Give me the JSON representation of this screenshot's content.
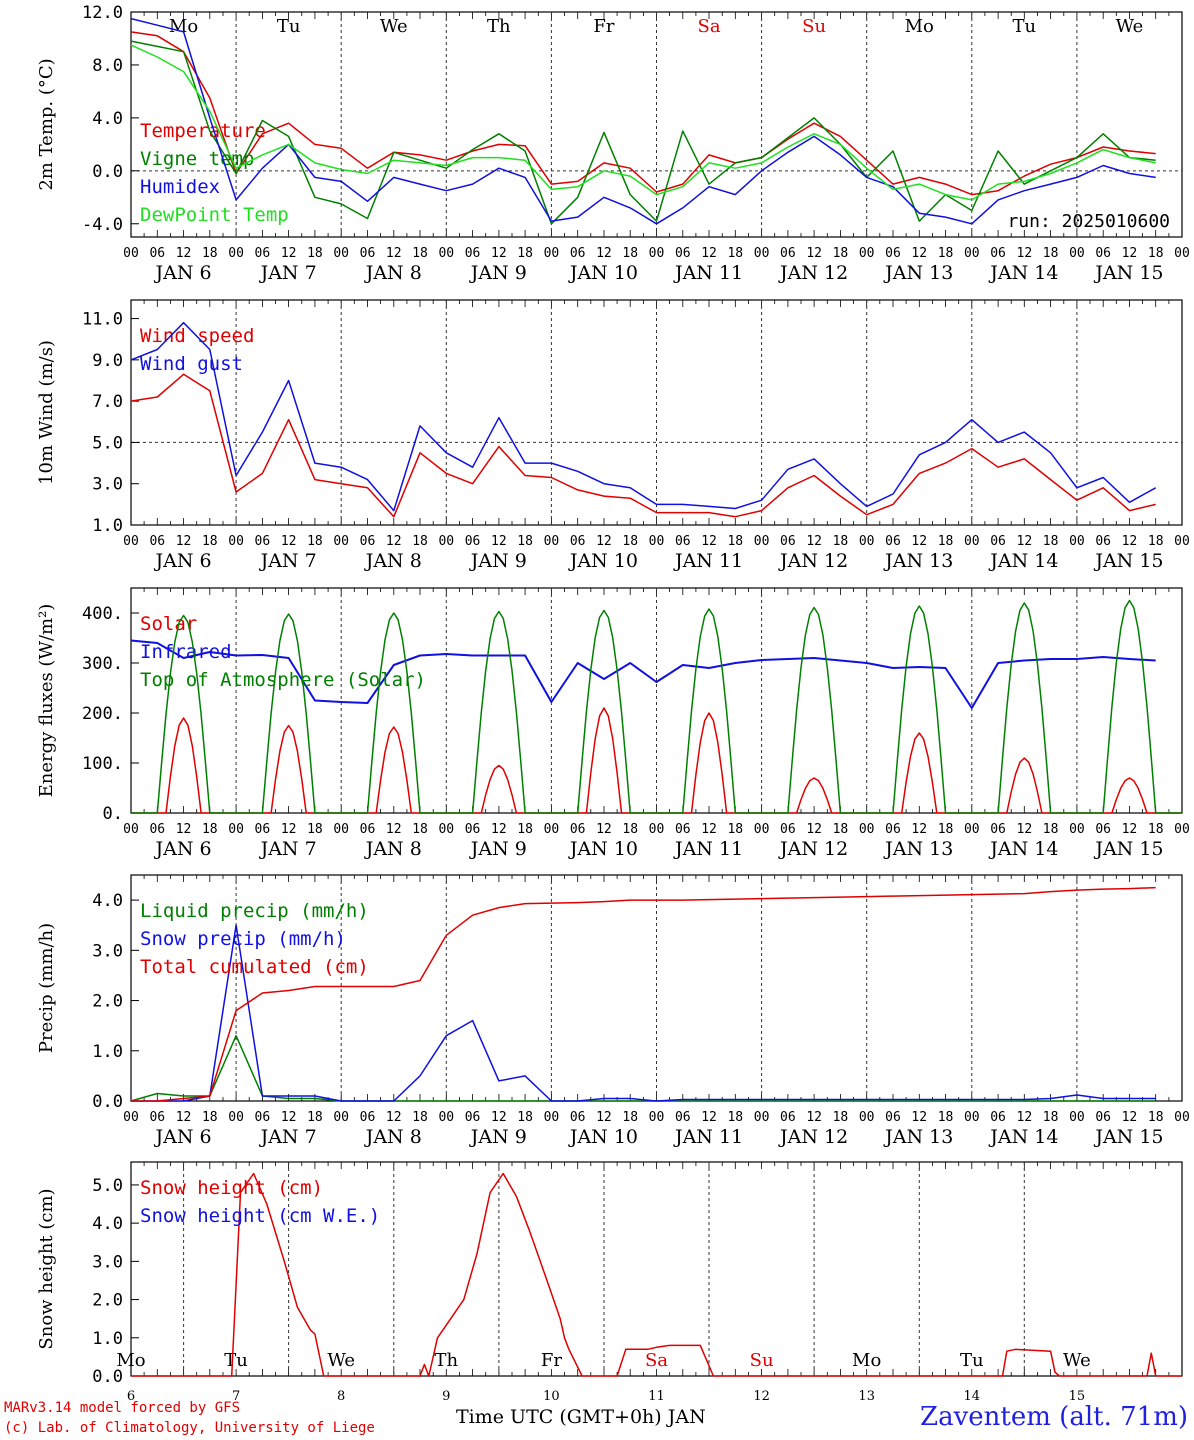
{
  "footer": {
    "model_line": "MARv3.14 model forced by GFS",
    "credit_line": "(c) Lab. of Climatology, University of Liege",
    "station": "Zaventem (alt. 71m)",
    "x_title": "Time UTC (GMT+0h) JAN"
  },
  "colors": {
    "red": "#e00000",
    "green": "#008000",
    "blue": "#1010e0",
    "lightgreen": "#20e020",
    "grid": "#555555"
  },
  "days": {
    "weekdays": [
      "Mo",
      "Tu",
      "We",
      "Th",
      "Fr",
      "Sa",
      "Su",
      "Mo",
      "Tu",
      "We"
    ],
    "weekend_indices": [
      5,
      6
    ],
    "dates": [
      "JAN 6",
      "JAN 7",
      "JAN 8",
      "JAN 9",
      "JAN 10",
      "JAN 11",
      "JAN 12",
      "JAN 13",
      "JAN 14",
      "JAN 15"
    ],
    "day_numbers": [
      "6",
      "7",
      "8",
      "9",
      "10",
      "11",
      "12",
      "13",
      "14",
      "15"
    ],
    "hour_labels": [
      "00",
      "06",
      "12",
      "18"
    ],
    "final_hour_label": "00"
  },
  "chart_data": [
    {
      "id": "temp",
      "type": "line",
      "ylabel": "2m Temp. (°C)",
      "ylim": [
        -5.0,
        12.0
      ],
      "yticks": [
        "12.0",
        "8.0",
        "4.0",
        "0.0",
        "-4.0"
      ],
      "ytick_values": [
        12,
        8,
        4,
        0,
        -4
      ],
      "dashed_ref": 0,
      "annotation": "run: 2025010600",
      "x_hours": [
        0,
        6,
        12,
        18,
        24,
        30,
        36,
        42,
        48,
        54,
        60,
        66,
        72,
        78,
        84,
        90,
        96,
        102,
        108,
        114,
        120,
        126,
        132,
        138,
        144,
        150,
        156,
        162,
        168,
        174,
        180,
        186,
        192,
        198,
        204,
        210,
        216,
        222,
        228,
        234
      ],
      "series": [
        {
          "name": "Temperature",
          "color": "red",
          "values": [
            10.5,
            10.2,
            9.0,
            5.5,
            -0.2,
            2.8,
            3.6,
            2.0,
            1.7,
            0.2,
            1.4,
            1.2,
            0.8,
            1.5,
            2.0,
            1.9,
            -1.0,
            -0.8,
            0.6,
            0.2,
            -1.6,
            -1.0,
            1.2,
            0.6,
            1.0,
            2.4,
            3.6,
            2.6,
            0.8,
            -1.0,
            -0.5,
            -1.0,
            -1.8,
            -1.5,
            -0.4,
            0.5,
            1.0,
            1.8,
            1.5,
            1.3
          ]
        },
        {
          "name": "Vigne temp",
          "color": "green",
          "values": [
            9.8,
            9.4,
            9.0,
            3.0,
            -0.2,
            3.8,
            2.6,
            -2.0,
            -2.5,
            -3.6,
            1.4,
            0.8,
            0.2,
            1.6,
            2.8,
            1.5,
            -4.0,
            -2.0,
            2.9,
            -1.8,
            -3.8,
            3.0,
            -1.0,
            0.6,
            1.0,
            2.5,
            4.0,
            2.0,
            -0.5,
            1.5,
            -3.8,
            -1.8,
            -3.0,
            1.5,
            -1.0,
            0.0,
            1.0,
            2.8,
            1.0,
            0.8
          ]
        },
        {
          "name": "Humidex",
          "color": "blue",
          "values": [
            11.5,
            11.0,
            10.5,
            4.0,
            -2.2,
            0.2,
            2.0,
            -0.5,
            -0.8,
            -2.3,
            -0.5,
            -1.0,
            -1.5,
            -1.0,
            0.2,
            -0.5,
            -3.8,
            -3.5,
            -2.0,
            -2.8,
            -4.0,
            -2.8,
            -1.2,
            -1.8,
            0.0,
            1.4,
            2.6,
            1.2,
            -0.5,
            -1.2,
            -3.2,
            -3.5,
            -4.0,
            -2.2,
            -1.5,
            -1.0,
            -0.5,
            0.4,
            -0.2,
            -0.5
          ]
        },
        {
          "name": "DewPoint Temp",
          "color": "lightgreen",
          "values": [
            9.5,
            8.6,
            7.5,
            4.5,
            0.2,
            1.2,
            2.0,
            0.6,
            0.1,
            -0.2,
            0.8,
            0.6,
            0.4,
            1.0,
            1.0,
            0.8,
            -1.4,
            -1.2,
            0.0,
            -0.4,
            -1.8,
            -1.2,
            0.6,
            0.2,
            0.6,
            1.8,
            2.8,
            2.0,
            0.2,
            -1.4,
            -1.0,
            -1.8,
            -2.2,
            -1.0,
            -0.8,
            -0.2,
            0.6,
            1.6,
            1.0,
            0.6
          ]
        }
      ]
    },
    {
      "id": "wind",
      "type": "line",
      "ylabel": "10m Wind (m/s)",
      "ylim": [
        1.0,
        11.9
      ],
      "yticks": [
        "11.0",
        "9.0",
        "7.0",
        "5.0",
        "3.0",
        "1.0"
      ],
      "ytick_values": [
        11,
        9,
        7,
        5,
        3,
        1
      ],
      "dashed_ref": 5,
      "x_hours": [
        0,
        6,
        12,
        18,
        24,
        30,
        36,
        42,
        48,
        54,
        60,
        66,
        72,
        78,
        84,
        90,
        96,
        102,
        108,
        114,
        120,
        126,
        132,
        138,
        144,
        150,
        156,
        162,
        168,
        174,
        180,
        186,
        192,
        198,
        204,
        210,
        216,
        222,
        228,
        234
      ],
      "series": [
        {
          "name": "Wind speed",
          "color": "red",
          "values": [
            7.0,
            7.2,
            8.3,
            7.5,
            2.6,
            3.5,
            6.1,
            3.2,
            3.0,
            2.8,
            1.4,
            4.5,
            3.5,
            3.0,
            4.8,
            3.4,
            3.3,
            2.7,
            2.4,
            2.3,
            1.6,
            1.6,
            1.6,
            1.4,
            1.7,
            2.8,
            3.4,
            2.4,
            1.5,
            2.0,
            3.5,
            4.0,
            4.7,
            3.8,
            4.2,
            3.2,
            2.2,
            2.8,
            1.7,
            2.0
          ]
        },
        {
          "name": "Wind gust",
          "color": "blue",
          "values": [
            9.0,
            9.5,
            10.8,
            9.5,
            3.4,
            5.5,
            8.0,
            4.0,
            3.8,
            3.2,
            1.7,
            5.8,
            4.5,
            3.8,
            6.2,
            4.0,
            4.0,
            3.6,
            3.0,
            2.8,
            2.0,
            2.0,
            1.9,
            1.8,
            2.2,
            3.7,
            4.2,
            3.0,
            1.9,
            2.5,
            4.4,
            5.0,
            6.1,
            5.0,
            5.5,
            4.5,
            2.8,
            3.3,
            2.1,
            2.8
          ]
        }
      ]
    },
    {
      "id": "flux",
      "type": "line",
      "ylabel": "Energy fluxes (W/m²)",
      "ylim": [
        0,
        450
      ],
      "yticks": [
        "400.",
        "300.",
        "200.",
        "100.",
        "0."
      ],
      "ytick_values": [
        400,
        300,
        200,
        100,
        0
      ],
      "daily_peaks": {
        "top_of_atmosphere": [
          395,
          398,
          400,
          403,
          405,
          408,
          411,
          414,
          420,
          425
        ],
        "solar": [
          190,
          175,
          172,
          95,
          210,
          200,
          70,
          160,
          110,
          70
        ]
      },
      "series": [
        {
          "name": "Solar",
          "color": "red",
          "values_ref": "daily_peaks.solar"
        },
        {
          "name": "Infrared",
          "color": "blue",
          "x_hours": [
            0,
            6,
            12,
            18,
            24,
            30,
            36,
            42,
            48,
            54,
            60,
            66,
            72,
            78,
            84,
            90,
            96,
            102,
            108,
            114,
            120,
            126,
            132,
            138,
            144,
            150,
            156,
            162,
            168,
            174,
            180,
            186,
            192,
            198,
            204,
            210,
            216,
            222,
            228,
            234
          ],
          "values": [
            345,
            340,
            310,
            322,
            315,
            316,
            310,
            225,
            222,
            220,
            296,
            315,
            318,
            315,
            315,
            315,
            222,
            300,
            268,
            300,
            262,
            296,
            290,
            300,
            306,
            308,
            310,
            305,
            300,
            290,
            292,
            290,
            210,
            300,
            305,
            308,
            308,
            312,
            308,
            305
          ]
        },
        {
          "name": "Top of Atmosphere (Solar)",
          "color": "green",
          "values_ref": "daily_peaks.top_of_atmosphere"
        }
      ]
    },
    {
      "id": "precip",
      "type": "line",
      "ylabel": "Precip (mm/h)",
      "ylim": [
        0,
        4.5
      ],
      "yticks": [
        "4.0",
        "3.0",
        "2.0",
        "1.0",
        "0.0"
      ],
      "ytick_values": [
        4,
        3,
        2,
        1,
        0
      ],
      "x_hours": [
        0,
        6,
        12,
        18,
        24,
        30,
        36,
        42,
        48,
        54,
        60,
        66,
        72,
        78,
        84,
        90,
        96,
        102,
        108,
        114,
        120,
        126,
        132,
        138,
        144,
        150,
        156,
        162,
        168,
        174,
        180,
        186,
        192,
        198,
        204,
        210,
        216,
        222,
        228,
        234
      ],
      "series": [
        {
          "name": "Liquid precip (mm/h)",
          "color": "green",
          "values": [
            0.0,
            0.15,
            0.1,
            0.1,
            1.3,
            0.1,
            0.05,
            0.05,
            0.0,
            0.0,
            0.0,
            0.0,
            0.0,
            0.0,
            0.0,
            0.0,
            0.0,
            0.0,
            0.0,
            0.0,
            0.0,
            0.0,
            0.0,
            0.0,
            0.0,
            0.0,
            0.0,
            0.0,
            0.0,
            0.0,
            0.0,
            0.0,
            0.0,
            0.0,
            0.0,
            0.0,
            0.0,
            0.0,
            0.0,
            0.0
          ]
        },
        {
          "name": "Snow precip (mm/h)",
          "color": "blue",
          "values": [
            0.0,
            0.0,
            0.0,
            0.1,
            3.5,
            0.1,
            0.1,
            0.1,
            0.0,
            0.0,
            0.0,
            0.5,
            1.3,
            1.6,
            0.4,
            0.5,
            0.0,
            0.0,
            0.05,
            0.05,
            0.0,
            0.03,
            0.03,
            0.03,
            0.03,
            0.03,
            0.03,
            0.03,
            0.03,
            0.03,
            0.03,
            0.03,
            0.03,
            0.03,
            0.03,
            0.05,
            0.12,
            0.05,
            0.05,
            0.05
          ]
        },
        {
          "name": "Total cumulated (cm)",
          "color": "red",
          "values": [
            0.0,
            0.0,
            0.05,
            0.1,
            1.8,
            2.15,
            2.2,
            2.28,
            2.28,
            2.28,
            2.28,
            2.4,
            3.3,
            3.7,
            3.85,
            3.93,
            3.94,
            3.95,
            3.97,
            4.0,
            4.0,
            4.0,
            4.01,
            4.02,
            4.03,
            4.04,
            4.05,
            4.06,
            4.07,
            4.08,
            4.09,
            4.1,
            4.11,
            4.12,
            4.13,
            4.17,
            4.2,
            4.22,
            4.23,
            4.25
          ]
        }
      ]
    },
    {
      "id": "snow",
      "type": "line",
      "ylabel": "Snow height (cm)",
      "ylim": [
        0,
        5.6
      ],
      "yticks": [
        "5.0",
        "4.0",
        "3.0",
        "2.0",
        "1.0",
        "0.0"
      ],
      "ytick_values": [
        5,
        4,
        3,
        2,
        1,
        0
      ],
      "x_hours": [
        0,
        23,
        25,
        28,
        31,
        35,
        38,
        41,
        42,
        44,
        66,
        67,
        68,
        70,
        73,
        76,
        79,
        82,
        85,
        88,
        91,
        95,
        98,
        99,
        100,
        103,
        111,
        113,
        115,
        117,
        118,
        120,
        123,
        130,
        133,
        199,
        200,
        202,
        210,
        211,
        212,
        232,
        233,
        234,
        240
      ],
      "series": [
        {
          "name": "Snow height (cm)",
          "color": "red",
          "values": [
            0,
            0,
            4.8,
            5.3,
            4.5,
            3.0,
            1.8,
            1.2,
            1.1,
            0,
            0,
            0.3,
            0,
            1.0,
            1.5,
            2.0,
            3.2,
            4.8,
            5.3,
            4.7,
            3.8,
            2.5,
            1.5,
            1.0,
            0.7,
            0,
            0,
            0.7,
            0.7,
            0.7,
            0.7,
            0.75,
            0.8,
            0.8,
            0,
            0,
            0.65,
            0.7,
            0.65,
            0.1,
            0,
            0,
            0.6,
            0,
            0
          ]
        },
        {
          "name": "Snow height (cm W.E.)",
          "color": "blue",
          "values": []
        }
      ]
    }
  ]
}
